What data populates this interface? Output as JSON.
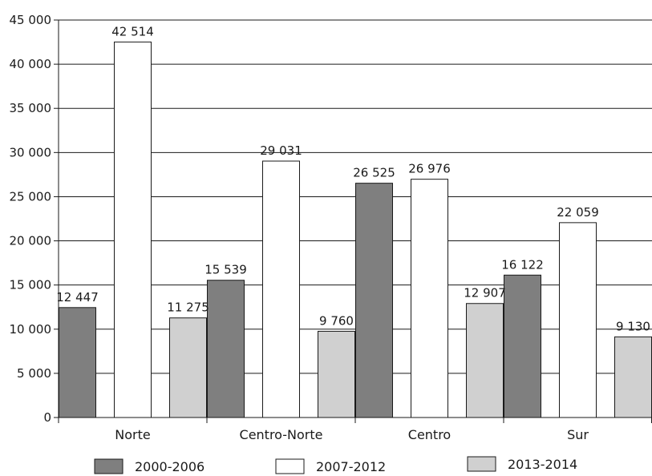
{
  "chart_data": {
    "type": "bar",
    "title": "",
    "xlabel": "",
    "ylabel": "",
    "ylim": [
      0,
      45000
    ],
    "yticks": [
      0,
      5000,
      10000,
      15000,
      20000,
      25000,
      30000,
      35000,
      40000,
      45000
    ],
    "ytick_labels": [
      "0",
      "5 000",
      "10 000",
      "15 000",
      "20 000",
      "25 000",
      "30 000",
      "35 000",
      "40 000",
      "45 000"
    ],
    "grid": true,
    "legend_position": "bottom",
    "categories": [
      "Norte",
      "Centro-Norte",
      "Centro",
      "Sur"
    ],
    "series": [
      {
        "name": "2000-2006",
        "color": "#7f7f7f",
        "values": [
          12447,
          15539,
          26525,
          16122
        ],
        "labels": [
          "12 447",
          "15 539",
          "26 525",
          "16 122"
        ]
      },
      {
        "name": "2007-2012",
        "color": "#ffffff",
        "values": [
          42514,
          29031,
          26976,
          22059
        ],
        "labels": [
          "42 514",
          "29 031",
          "26 976",
          "22 059"
        ]
      },
      {
        "name": "2013-2014",
        "color": "#d0d0d0",
        "values": [
          11275,
          9760,
          12907,
          9130
        ],
        "labels": [
          "11 275",
          "9 760",
          "12 907",
          "9 130"
        ]
      }
    ]
  }
}
